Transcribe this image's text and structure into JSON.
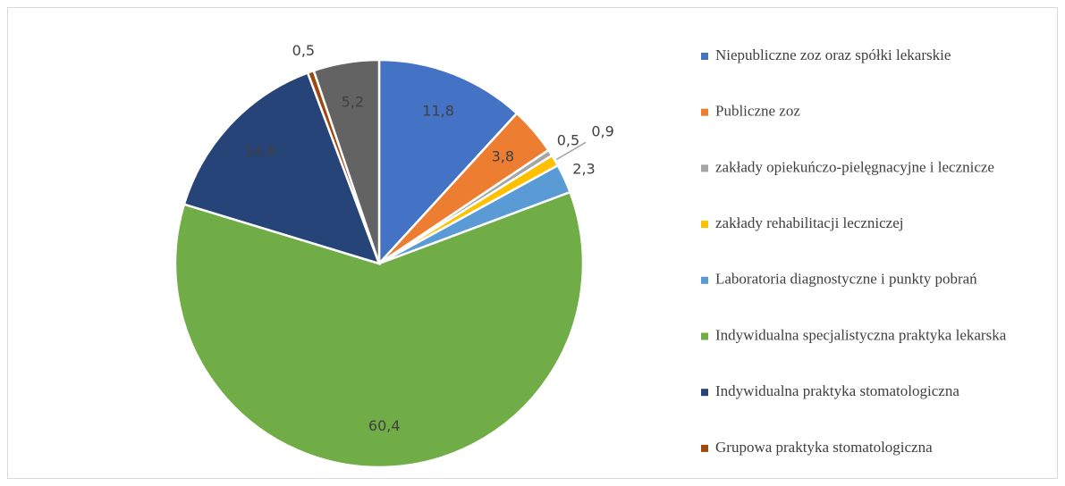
{
  "chart_data": {
    "type": "pie",
    "categories": [
      "Niepubliczne zoz oraz spółki lekarskie",
      "Publiczne zoz",
      "zakłady opiekuńczo-pielęgnacyjne i lecznicze",
      "zakłady rehabilitacji leczniczej",
      "Laboratoria diagnostyczne i punkty pobrań",
      "Indywidualna specjalistyczna praktyka lekarska",
      "Indywidualna praktyka stomatologiczna",
      "Grupowa praktyka stomatologiczna",
      null
    ],
    "values": [
      11.8,
      3.8,
      0.5,
      0.9,
      2.3,
      60.4,
      14.6,
      0.5,
      5.2
    ],
    "value_labels": [
      "11,8",
      "3,8",
      "0,5",
      "0,9",
      "2,3",
      "60,4",
      "14,6",
      "0,5",
      "5,2"
    ],
    "colors": [
      "#4472c4",
      "#ed7d31",
      "#a5a5a5",
      "#ffc000",
      "#5b9bd5",
      "#70ad47",
      "#264478",
      "#9e480e",
      "#636363"
    ],
    "legend": "right"
  }
}
